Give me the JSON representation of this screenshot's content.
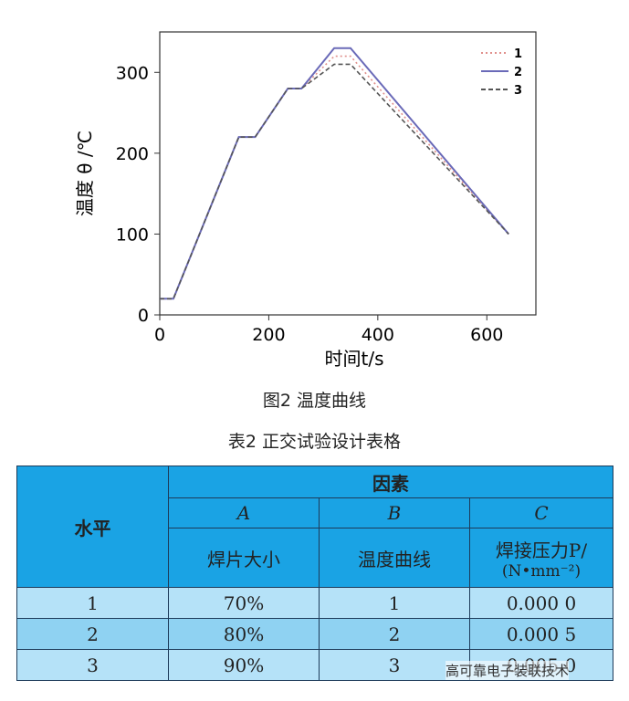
{
  "chart_data": {
    "type": "line",
    "x_label": "时间t/s",
    "y_label": "温度 θ /℃",
    "x": [
      0,
      25,
      145,
      175,
      235,
      260,
      320,
      350,
      640
    ],
    "series": [
      {
        "name": "1",
        "color": "#e0908c",
        "dash": "2,3",
        "values": [
          20,
          20,
          220,
          220,
          280,
          280,
          320,
          320,
          100
        ]
      },
      {
        "name": "2",
        "color": "#6a6ab8",
        "dash": "none",
        "values": [
          20,
          20,
          220,
          220,
          280,
          280,
          330,
          330,
          100
        ]
      },
      {
        "name": "3",
        "color": "#555555",
        "dash": "5,3",
        "values": [
          20,
          20,
          220,
          220,
          280,
          280,
          310,
          310,
          100
        ]
      }
    ],
    "xlim": [
      0,
      690
    ],
    "ylim": [
      0,
      350
    ],
    "xticks": [
      0,
      200,
      400,
      600
    ],
    "yticks": [
      0,
      100,
      200,
      300
    ],
    "legend": "upper-right"
  },
  "figure_caption": "图2 温度曲线",
  "table": {
    "title": "表2 正交试验设计表格",
    "header": {
      "level": "水平",
      "factors": "因素",
      "factor_codes": [
        "A",
        "B",
        "C"
      ],
      "factor_names": [
        "焊片大小",
        "温度曲线",
        "焊接压力P/"
      ],
      "factor_unit": "(N•mm⁻²)"
    },
    "rows": [
      [
        "1",
        "70%",
        "1",
        "0.000 0"
      ],
      [
        "2",
        "80%",
        "2",
        "0.000 5"
      ],
      [
        "3",
        "90%",
        "3",
        "0.005 0"
      ]
    ]
  },
  "watermark": "高可靠电子装联技术"
}
